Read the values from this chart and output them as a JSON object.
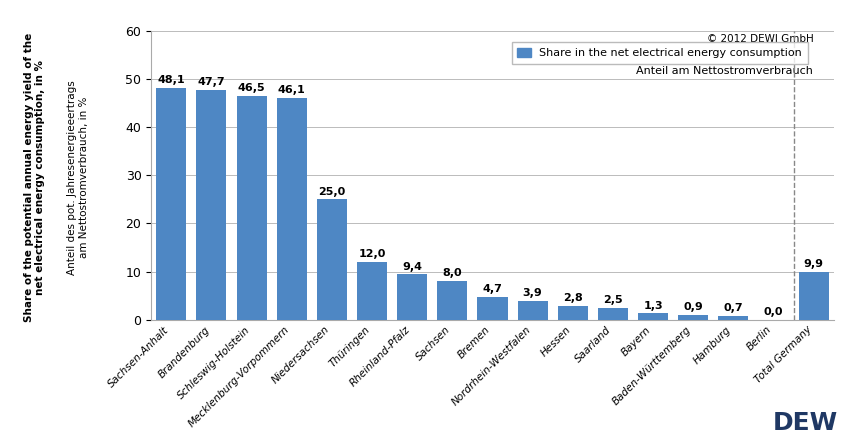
{
  "categories": [
    "Sachsen-Anhalt",
    "Brandenburg",
    "Schleswig-Holstein",
    "Mecklenburg-Vorpommern",
    "Niedersachsen",
    "Thüringen",
    "Rheinland-Pfalz",
    "Sachsen",
    "Bremen",
    "Nordrhein-Westfalen",
    "Hessen",
    "Saarland",
    "Bayern",
    "Baden-Württemberg",
    "Hamburg",
    "Berlin",
    "Total Germany"
  ],
  "values": [
    48.1,
    47.7,
    46.5,
    46.1,
    25.0,
    12.0,
    9.4,
    8.0,
    4.7,
    3.9,
    2.8,
    2.5,
    1.3,
    0.9,
    0.7,
    0.0,
    9.9
  ],
  "bar_color": "#4E87C4",
  "ylim": [
    0,
    60
  ],
  "yticks": [
    0,
    10,
    20,
    30,
    40,
    50,
    60
  ],
  "legend_label1": "Share in the net electrical energy consumption",
  "legend_label2": "Anteil am Nettostromverbrauch",
  "copyright": "© 2012 DEWI GmbH",
  "background_color": "#FFFFFF",
  "grid_color": "#BBBBBB",
  "label_fontsize": 8.0,
  "tick_fontsize": 7.5,
  "ylabel_en": "Share of the potential annual energy yield of the\nnet electrical energy consumption, in %",
  "ylabel_de": "Anteil des pot. Jahresenergieeertrags\nam Nettostromverbrauch, in %"
}
